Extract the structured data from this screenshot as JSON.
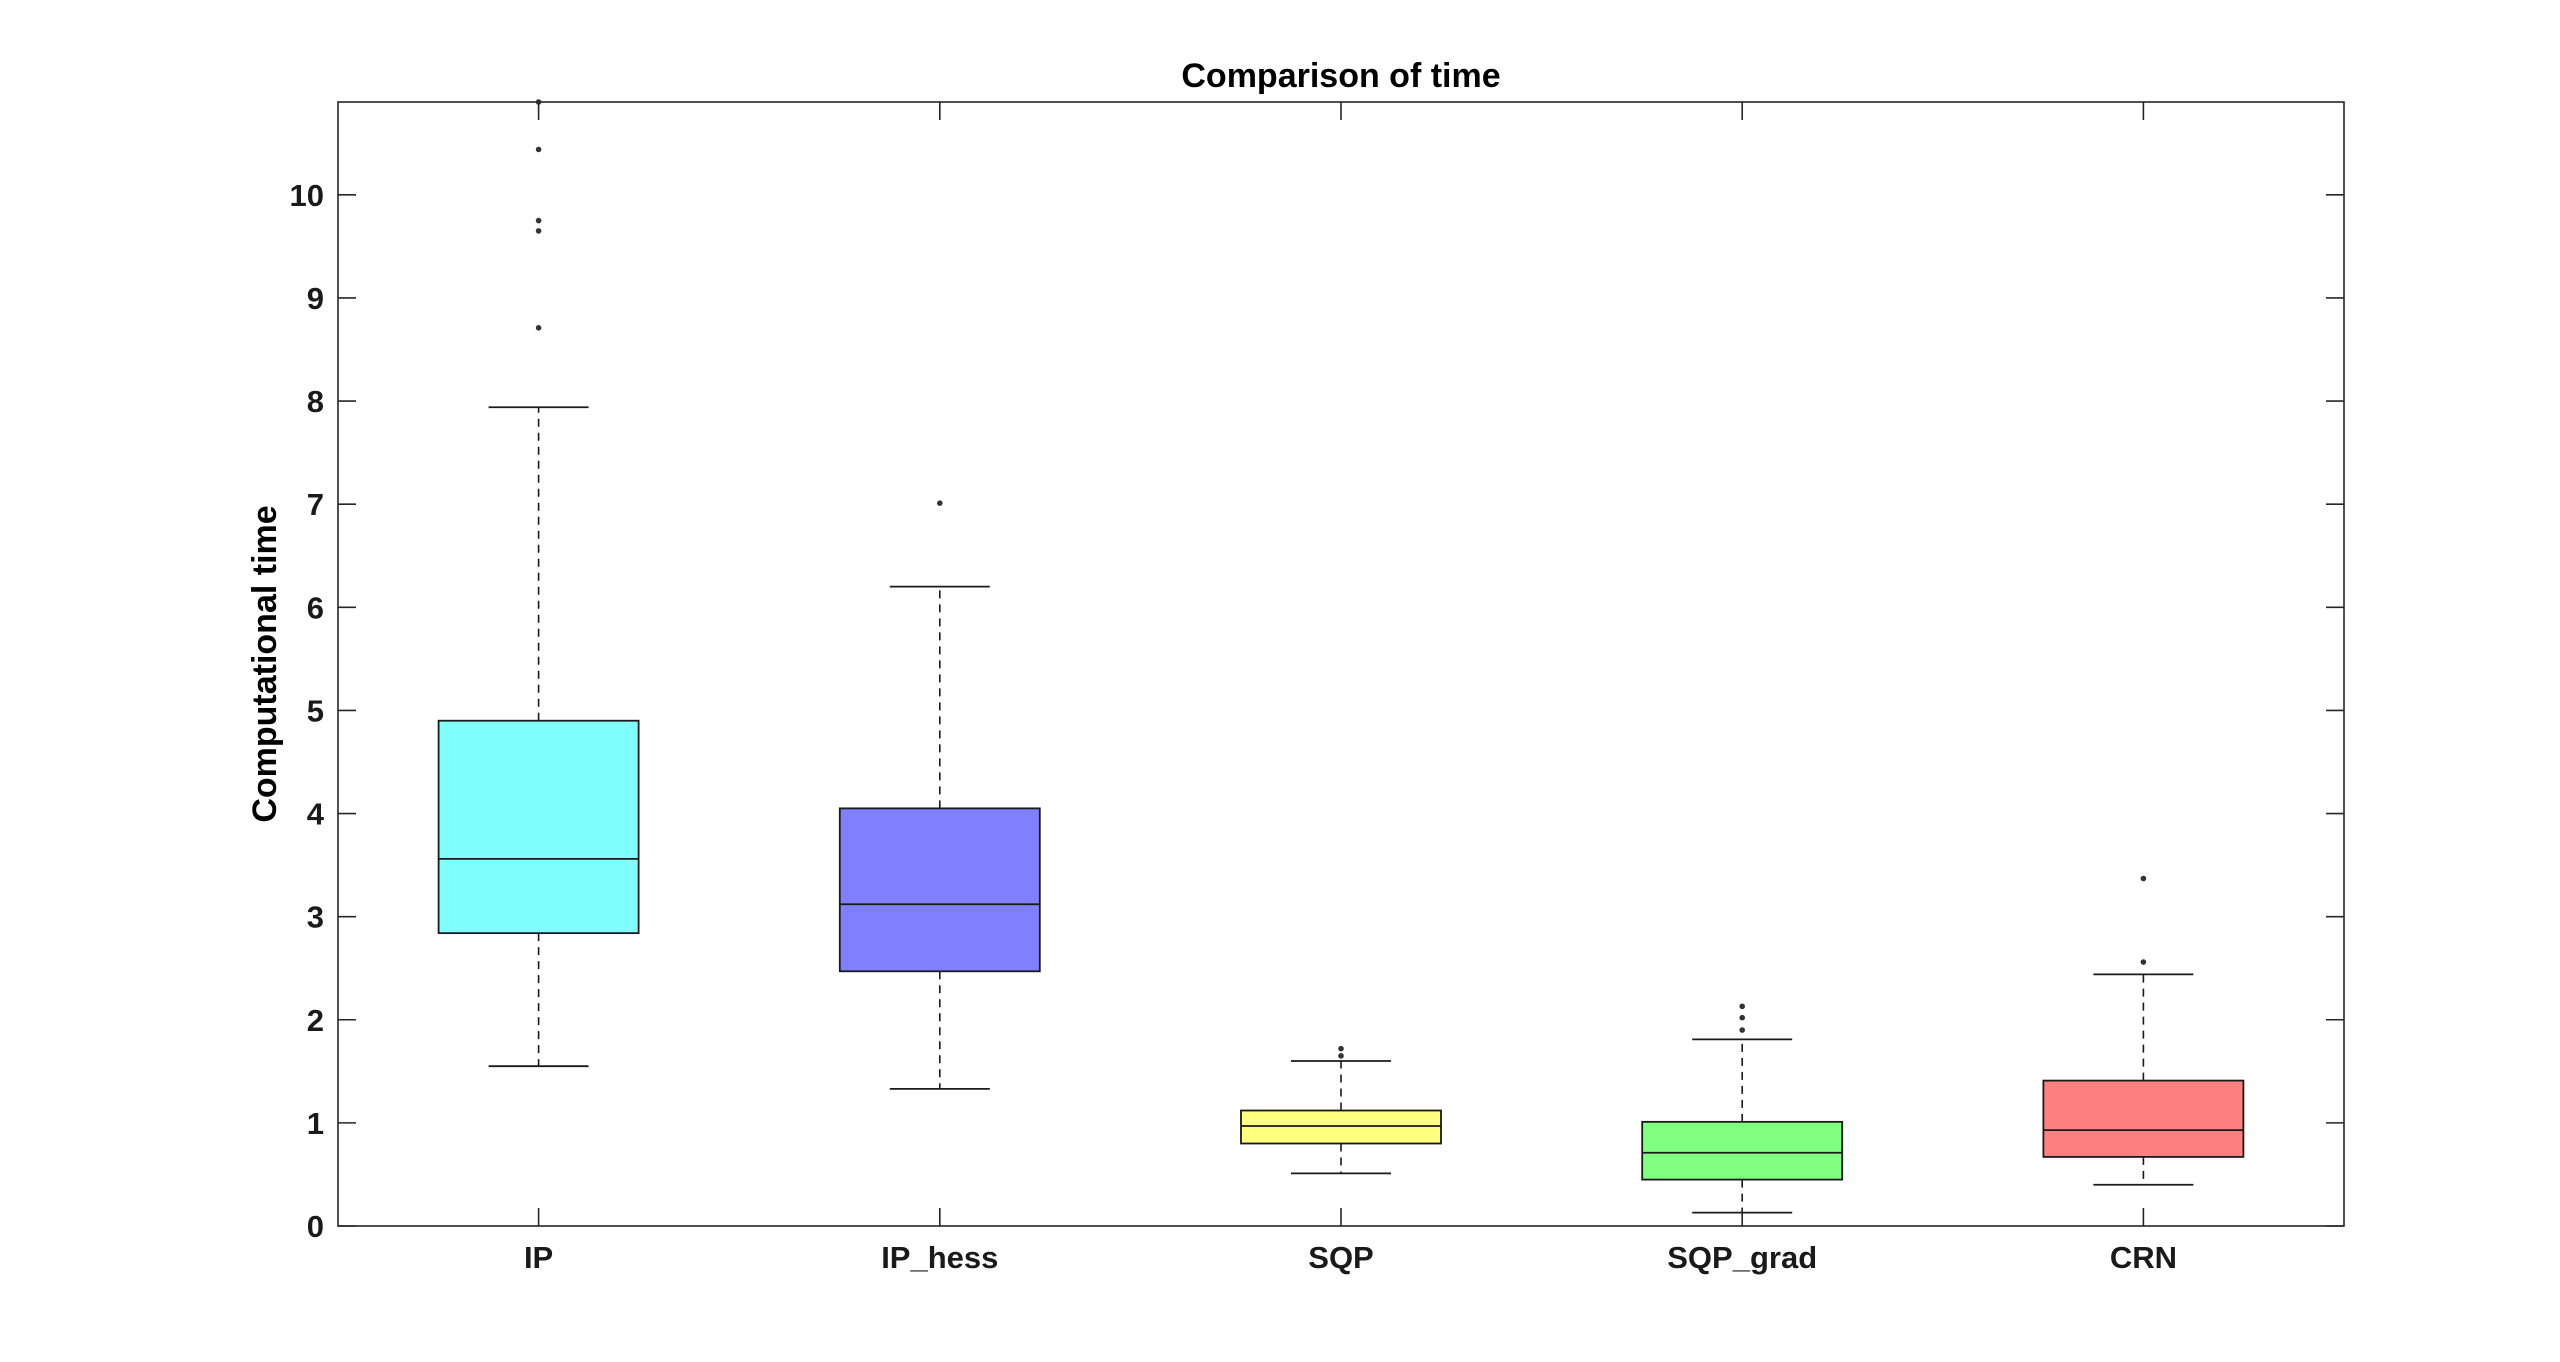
{
  "chart_data": {
    "type": "boxplot",
    "title": "Comparison of time",
    "xlabel": "",
    "ylabel": "Computational time",
    "ylim": [
      0,
      10.9
    ],
    "yticks": [
      0,
      1,
      2,
      3,
      4,
      5,
      6,
      7,
      8,
      9,
      10
    ],
    "ytick_labels": [
      "0",
      "1",
      "2",
      "3",
      "4",
      "5",
      "6",
      "7",
      "8",
      "9",
      "10"
    ],
    "grid": false,
    "categories": [
      "IP",
      "IP_hess",
      "SQP",
      "SQP_grad",
      "CRN"
    ],
    "boxes": [
      {
        "category": "IP",
        "color": "#80ffff",
        "whisker_low": 1.55,
        "q1": 2.84,
        "median": 3.56,
        "q3": 4.9,
        "whisker_high": 7.94,
        "outliers": [
          8.71,
          9.65,
          9.75,
          10.44,
          10.9
        ]
      },
      {
        "category": "IP_hess",
        "color": "#8080ff",
        "whisker_low": 1.33,
        "q1": 2.47,
        "median": 3.12,
        "q3": 4.05,
        "whisker_high": 6.2,
        "outliers": [
          7.01
        ]
      },
      {
        "category": "SQP",
        "color": "#ffff80",
        "whisker_low": 0.51,
        "q1": 0.8,
        "median": 0.97,
        "q3": 1.12,
        "whisker_high": 1.6,
        "outliers": [
          1.65,
          1.72
        ]
      },
      {
        "category": "SQP_grad",
        "color": "#80ff80",
        "whisker_low": 0.13,
        "q1": 0.45,
        "median": 0.71,
        "q3": 1.01,
        "whisker_high": 1.81,
        "outliers": [
          1.9,
          2.02,
          2.13
        ]
      },
      {
        "category": "CRN",
        "color": "#ff8080",
        "whisker_low": 0.4,
        "q1": 0.67,
        "median": 0.93,
        "q3": 1.41,
        "whisker_high": 2.44,
        "outliers": [
          2.56,
          3.37
        ]
      }
    ]
  }
}
